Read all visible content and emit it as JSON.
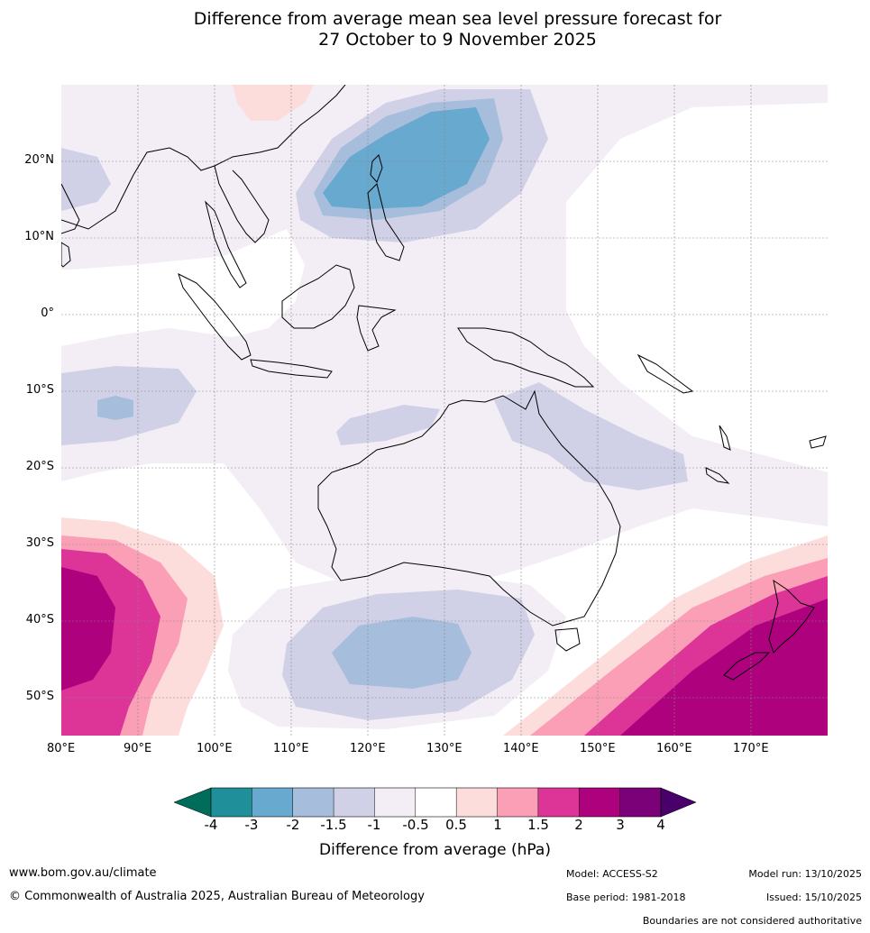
{
  "title": {
    "line1": "Difference from average mean sea level pressure forecast for",
    "line2": "27 October to 9 November 2025"
  },
  "map": {
    "lat_labels": [
      "20°N",
      "10°N",
      "0°",
      "10°S",
      "20°S",
      "30°S",
      "40°S",
      "50°S"
    ],
    "lon_labels": [
      "80°E",
      "90°E",
      "100°E",
      "110°E",
      "120°E",
      "130°E",
      "140°E",
      "150°E",
      "160°E",
      "170°E"
    ],
    "extent": {
      "lon_min": 80,
      "lon_max": 180,
      "lat_min": -55,
      "lat_max": 30
    }
  },
  "colorbar": {
    "tick_labels": [
      "-4",
      "-3",
      "-2",
      "-1.5",
      "-1",
      "-0.5",
      "0.5",
      "1",
      "1.5",
      "2",
      "3",
      "4"
    ],
    "colors": {
      "below_min": "#006d5b",
      "bins": [
        "#1f9099",
        "#67a9cf",
        "#a6bddb",
        "#d0d1e6",
        "#f3edf5",
        "#ffffff",
        "#fddcdc",
        "#fa9fb5",
        "#dd3497",
        "#ae017e",
        "#7a0177"
      ],
      "above_max": "#49006a"
    },
    "label": "Difference from average (hPa)"
  },
  "footer": {
    "website": "www.bom.gov.au/climate",
    "copyright": "© Commonwealth of Australia 2025, Australian Bureau of Meteorology",
    "model": "Model: ACCESS-S2",
    "base_period": "Base period: 1981-2018",
    "model_run": "Model run: 13/10/2025",
    "issued": "Issued: 15/10/2025",
    "disclaimer": "Boundaries are not considered authoritative"
  }
}
